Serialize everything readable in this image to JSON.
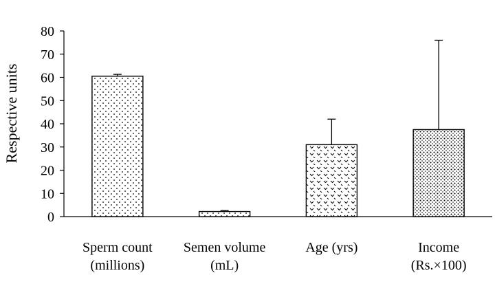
{
  "chart_data": {
    "type": "bar",
    "ylabel": "Respective units",
    "ylim": [
      0,
      80
    ],
    "yticks": [
      0,
      10,
      20,
      30,
      40,
      50,
      60,
      70,
      80
    ],
    "grid": false,
    "categories": [
      [
        "Sperm count",
        "(millions)"
      ],
      [
        "Semen volume",
        "(mL)"
      ],
      [
        "Age (yrs)"
      ],
      [
        "Income",
        "(Rs.×100)"
      ]
    ],
    "values": [
      60.5,
      2.2,
      31,
      37.5
    ],
    "error_upper": [
      61.3,
      2.6,
      42,
      76
    ],
    "patterns": [
      "dots-fine",
      "dots-fine",
      "chevron",
      "dots-dense"
    ]
  }
}
